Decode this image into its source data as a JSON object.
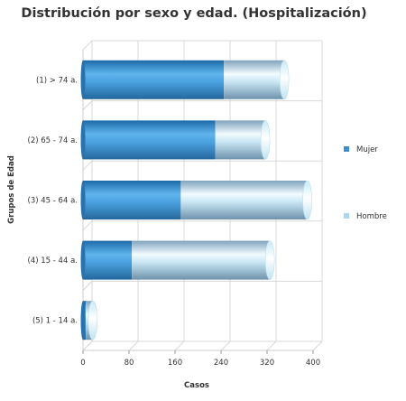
{
  "chart_data": {
    "type": "bar",
    "orientation": "horizontal",
    "stacked": true,
    "title": "Distribución por sexo y edad. (Hospitalización)",
    "xlabel": "Casos",
    "ylabel": "Grupos de Edad",
    "categories": [
      "(1) > 74 a.",
      "(2) 65 - 74 a.",
      "(3) 45 - 64 a.",
      "(4) 15 - 44 a.",
      "(5) 1 - 14 a."
    ],
    "series": [
      {
        "name": "Mujer",
        "values": [
          245,
          230,
          170,
          85,
          5
        ],
        "color": "#3f8fd0"
      },
      {
        "name": "Hombre",
        "values": [
          105,
          87,
          220,
          240,
          12
        ],
        "color": "#a9d8f2"
      }
    ],
    "xlim": [
      0,
      400
    ],
    "xticks": [
      0,
      80,
      160,
      240,
      320,
      400
    ],
    "grid": true,
    "legend_position": "right"
  }
}
